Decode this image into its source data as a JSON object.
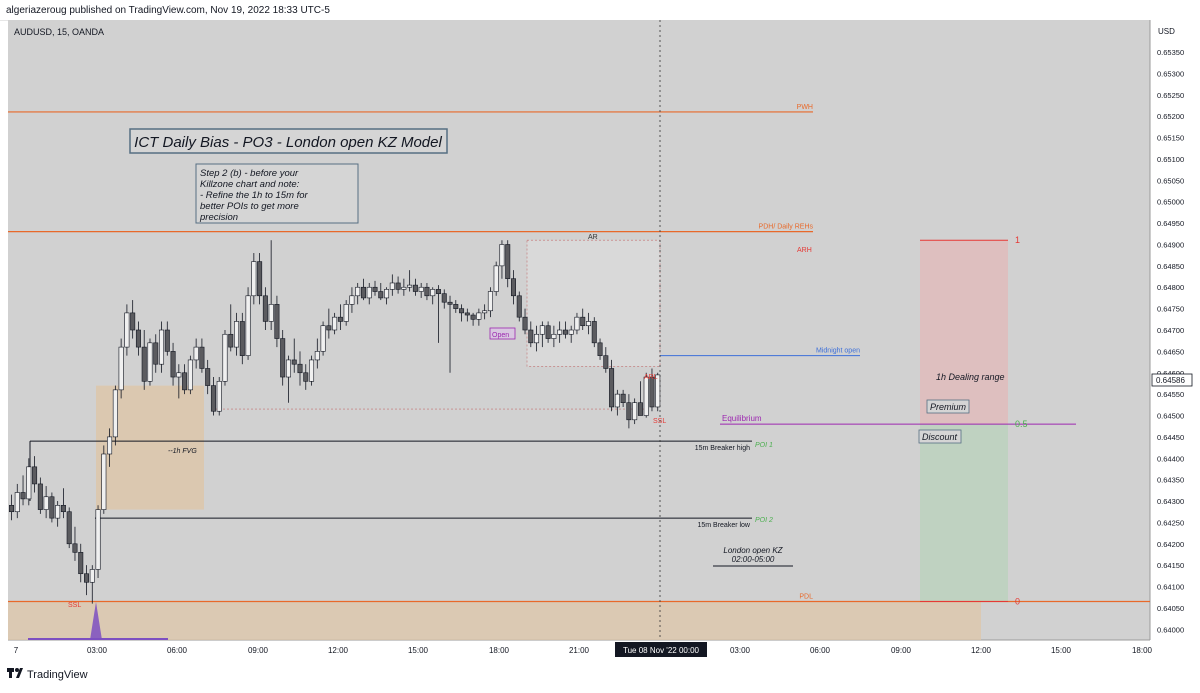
{
  "header": {
    "publisher": "algeriazeroug published on TradingView.com, Nov 19, 2022 18:33 UTC-5"
  },
  "footer": {
    "brand": "TradingView"
  },
  "symbol_label": "AUDUSD, 15, OANDA",
  "title_box": "ICT Daily Bias - PO3 - London open KZ Model",
  "note_lines": [
    "Step 2 (b) - before your",
    "Killzone chart and note:",
    "- Refine the 1h to 15m for",
    "better POIs to get more",
    "precision"
  ],
  "crosshair_time": "Tue 08 Nov '22   00:00",
  "current_price": "0.64586",
  "colors": {
    "bull": "#f0f0f0",
    "bear": "#5b5b5f",
    "orange": "#e8692a",
    "blue": "#3d6fd8",
    "purple": "#9c27b0",
    "green": "#4caf50",
    "red": "#e53935",
    "fvg": "#ddc6a8",
    "plot_bg": "#d1d1d1"
  },
  "chart_data": {
    "type": "candlestick",
    "symbol": "AUDUSD",
    "timeframe": "15",
    "broker": "OANDA",
    "y_axis": {
      "unit": "USD",
      "range": [
        0.63975,
        0.65425
      ],
      "ticks": [
        "0.64000",
        "0.64050",
        "0.64100",
        "0.64150",
        "0.64200",
        "0.64250",
        "0.64300",
        "0.64350",
        "0.64400",
        "0.64450",
        "0.64500",
        "0.64550",
        "0.64600",
        "0.64650",
        "0.64700",
        "0.64750",
        "0.64800",
        "0.64850",
        "0.64900",
        "0.64950",
        "0.65000",
        "0.65050",
        "0.65100",
        "0.65150",
        "0.65200",
        "0.65250",
        "0.65300",
        "0.65350"
      ]
    },
    "x_axis": {
      "ticks": [
        "7",
        "03:00",
        "06:00",
        "09:00",
        "12:00",
        "15:00",
        "18:00",
        "21:00",
        "00:00",
        "03:00",
        "06:00",
        "09:00",
        "12:00",
        "15:00",
        "18:00"
      ]
    },
    "candles": [
      {
        "o": 0.6429,
        "h": 0.64315,
        "l": 0.64255,
        "c": 0.64275
      },
      {
        "o": 0.64275,
        "h": 0.6434,
        "l": 0.6426,
        "c": 0.6432
      },
      {
        "o": 0.6432,
        "h": 0.6436,
        "l": 0.6429,
        "c": 0.64305
      },
      {
        "o": 0.64305,
        "h": 0.644,
        "l": 0.6429,
        "c": 0.6438
      },
      {
        "o": 0.6438,
        "h": 0.64405,
        "l": 0.6432,
        "c": 0.6434
      },
      {
        "o": 0.6434,
        "h": 0.64355,
        "l": 0.6427,
        "c": 0.6428
      },
      {
        "o": 0.6428,
        "h": 0.64335,
        "l": 0.6426,
        "c": 0.6431
      },
      {
        "o": 0.6431,
        "h": 0.6432,
        "l": 0.6425,
        "c": 0.6426
      },
      {
        "o": 0.6426,
        "h": 0.643,
        "l": 0.6424,
        "c": 0.6429
      },
      {
        "o": 0.6429,
        "h": 0.6433,
        "l": 0.6426,
        "c": 0.64275
      },
      {
        "o": 0.64275,
        "h": 0.64285,
        "l": 0.6419,
        "c": 0.642
      },
      {
        "o": 0.642,
        "h": 0.6424,
        "l": 0.6416,
        "c": 0.6418
      },
      {
        "o": 0.6418,
        "h": 0.642,
        "l": 0.6411,
        "c": 0.6413
      },
      {
        "o": 0.6413,
        "h": 0.6415,
        "l": 0.6408,
        "c": 0.6411
      },
      {
        "o": 0.6411,
        "h": 0.6415,
        "l": 0.6406,
        "c": 0.6414
      },
      {
        "o": 0.6414,
        "h": 0.6429,
        "l": 0.6412,
        "c": 0.6428
      },
      {
        "o": 0.6428,
        "h": 0.6443,
        "l": 0.6427,
        "c": 0.6441
      },
      {
        "o": 0.6441,
        "h": 0.6447,
        "l": 0.6438,
        "c": 0.6445
      },
      {
        "o": 0.6445,
        "h": 0.6457,
        "l": 0.6443,
        "c": 0.6456
      },
      {
        "o": 0.6456,
        "h": 0.6468,
        "l": 0.6454,
        "c": 0.6466
      },
      {
        "o": 0.6466,
        "h": 0.6476,
        "l": 0.6464,
        "c": 0.6474
      },
      {
        "o": 0.6474,
        "h": 0.6477,
        "l": 0.6468,
        "c": 0.647
      },
      {
        "o": 0.647,
        "h": 0.6472,
        "l": 0.6464,
        "c": 0.6466
      },
      {
        "o": 0.6466,
        "h": 0.647,
        "l": 0.6456,
        "c": 0.6458
      },
      {
        "o": 0.6458,
        "h": 0.6468,
        "l": 0.6457,
        "c": 0.6467
      },
      {
        "o": 0.6467,
        "h": 0.6469,
        "l": 0.646,
        "c": 0.6462
      },
      {
        "o": 0.6462,
        "h": 0.6472,
        "l": 0.646,
        "c": 0.647
      },
      {
        "o": 0.647,
        "h": 0.6472,
        "l": 0.6464,
        "c": 0.6465
      },
      {
        "o": 0.6465,
        "h": 0.6467,
        "l": 0.6457,
        "c": 0.6459
      },
      {
        "o": 0.6459,
        "h": 0.6462,
        "l": 0.6454,
        "c": 0.646
      },
      {
        "o": 0.646,
        "h": 0.6462,
        "l": 0.6455,
        "c": 0.6456
      },
      {
        "o": 0.6456,
        "h": 0.6464,
        "l": 0.6455,
        "c": 0.6463
      },
      {
        "o": 0.6463,
        "h": 0.6468,
        "l": 0.6461,
        "c": 0.6466
      },
      {
        "o": 0.6466,
        "h": 0.6468,
        "l": 0.646,
        "c": 0.6461
      },
      {
        "o": 0.6461,
        "h": 0.6463,
        "l": 0.6455,
        "c": 0.6457
      },
      {
        "o": 0.6457,
        "h": 0.6459,
        "l": 0.645,
        "c": 0.6451
      },
      {
        "o": 0.6451,
        "h": 0.6459,
        "l": 0.645,
        "c": 0.6458
      },
      {
        "o": 0.6458,
        "h": 0.647,
        "l": 0.6457,
        "c": 0.6469
      },
      {
        "o": 0.6469,
        "h": 0.6476,
        "l": 0.6465,
        "c": 0.6466
      },
      {
        "o": 0.6466,
        "h": 0.6474,
        "l": 0.6464,
        "c": 0.6472
      },
      {
        "o": 0.6472,
        "h": 0.6474,
        "l": 0.6462,
        "c": 0.6464
      },
      {
        "o": 0.6464,
        "h": 0.648,
        "l": 0.6463,
        "c": 0.6478
      },
      {
        "o": 0.6478,
        "h": 0.6488,
        "l": 0.6476,
        "c": 0.6486
      },
      {
        "o": 0.6486,
        "h": 0.6488,
        "l": 0.6476,
        "c": 0.6478
      },
      {
        "o": 0.6478,
        "h": 0.648,
        "l": 0.647,
        "c": 0.6472
      },
      {
        "o": 0.6472,
        "h": 0.6491,
        "l": 0.647,
        "c": 0.6476
      },
      {
        "o": 0.6476,
        "h": 0.6478,
        "l": 0.6466,
        "c": 0.6468
      },
      {
        "o": 0.6468,
        "h": 0.647,
        "l": 0.6457,
        "c": 0.6459
      },
      {
        "o": 0.6459,
        "h": 0.6464,
        "l": 0.6453,
        "c": 0.6463
      },
      {
        "o": 0.6463,
        "h": 0.6468,
        "l": 0.646,
        "c": 0.6462
      },
      {
        "o": 0.6462,
        "h": 0.6465,
        "l": 0.6457,
        "c": 0.646
      },
      {
        "o": 0.646,
        "h": 0.6462,
        "l": 0.6456,
        "c": 0.6458
      },
      {
        "o": 0.6458,
        "h": 0.6464,
        "l": 0.6457,
        "c": 0.6463
      },
      {
        "o": 0.6463,
        "h": 0.6468,
        "l": 0.6461,
        "c": 0.6465
      },
      {
        "o": 0.6465,
        "h": 0.6472,
        "l": 0.6464,
        "c": 0.6471
      },
      {
        "o": 0.6471,
        "h": 0.6475,
        "l": 0.6468,
        "c": 0.647
      },
      {
        "o": 0.647,
        "h": 0.6474,
        "l": 0.6469,
        "c": 0.6473
      },
      {
        "o": 0.6473,
        "h": 0.6476,
        "l": 0.647,
        "c": 0.6472
      },
      {
        "o": 0.6472,
        "h": 0.6477,
        "l": 0.6471,
        "c": 0.6476
      },
      {
        "o": 0.6476,
        "h": 0.648,
        "l": 0.6474,
        "c": 0.6478
      },
      {
        "o": 0.6478,
        "h": 0.6481,
        "l": 0.6476,
        "c": 0.648
      },
      {
        "o": 0.648,
        "h": 0.6482,
        "l": 0.6477,
        "c": 0.64775
      },
      {
        "o": 0.64775,
        "h": 0.6481,
        "l": 0.6476,
        "c": 0.648
      },
      {
        "o": 0.648,
        "h": 0.64815,
        "l": 0.6478,
        "c": 0.6479
      },
      {
        "o": 0.6479,
        "h": 0.6481,
        "l": 0.6477,
        "c": 0.64775
      },
      {
        "o": 0.64775,
        "h": 0.648,
        "l": 0.6476,
        "c": 0.64795
      },
      {
        "o": 0.64795,
        "h": 0.6483,
        "l": 0.6478,
        "c": 0.6481
      },
      {
        "o": 0.6481,
        "h": 0.64825,
        "l": 0.64785,
        "c": 0.64795
      },
      {
        "o": 0.64795,
        "h": 0.6482,
        "l": 0.6478,
        "c": 0.648
      },
      {
        "o": 0.648,
        "h": 0.6484,
        "l": 0.6479,
        "c": 0.64805
      },
      {
        "o": 0.64805,
        "h": 0.6482,
        "l": 0.6478,
        "c": 0.6479
      },
      {
        "o": 0.6479,
        "h": 0.6481,
        "l": 0.64775,
        "c": 0.648
      },
      {
        "o": 0.648,
        "h": 0.6481,
        "l": 0.6477,
        "c": 0.6478
      },
      {
        "o": 0.6478,
        "h": 0.648,
        "l": 0.6476,
        "c": 0.64795
      },
      {
        "o": 0.64795,
        "h": 0.64805,
        "l": 0.6467,
        "c": 0.64785
      },
      {
        "o": 0.64785,
        "h": 0.64795,
        "l": 0.6475,
        "c": 0.64765
      },
      {
        "o": 0.64765,
        "h": 0.6478,
        "l": 0.646,
        "c": 0.6476
      },
      {
        "o": 0.6476,
        "h": 0.6477,
        "l": 0.6474,
        "c": 0.6475
      },
      {
        "o": 0.6475,
        "h": 0.6476,
        "l": 0.6472,
        "c": 0.6474
      },
      {
        "o": 0.6474,
        "h": 0.6475,
        "l": 0.6472,
        "c": 0.64735
      },
      {
        "o": 0.64735,
        "h": 0.6474,
        "l": 0.6471,
        "c": 0.64725
      },
      {
        "o": 0.64725,
        "h": 0.6475,
        "l": 0.6471,
        "c": 0.6474
      },
      {
        "o": 0.6474,
        "h": 0.6476,
        "l": 0.64725,
        "c": 0.64745
      },
      {
        "o": 0.64745,
        "h": 0.648,
        "l": 0.6473,
        "c": 0.6479
      },
      {
        "o": 0.6479,
        "h": 0.6486,
        "l": 0.6478,
        "c": 0.6485
      },
      {
        "o": 0.6485,
        "h": 0.6491,
        "l": 0.6482,
        "c": 0.649
      },
      {
        "o": 0.649,
        "h": 0.6491,
        "l": 0.648,
        "c": 0.6482
      },
      {
        "o": 0.6482,
        "h": 0.6484,
        "l": 0.6476,
        "c": 0.6478
      },
      {
        "o": 0.6478,
        "h": 0.6479,
        "l": 0.6472,
        "c": 0.6473
      },
      {
        "o": 0.6473,
        "h": 0.6475,
        "l": 0.6469,
        "c": 0.647
      },
      {
        "o": 0.647,
        "h": 0.6472,
        "l": 0.6466,
        "c": 0.6467
      },
      {
        "o": 0.6467,
        "h": 0.6471,
        "l": 0.6465,
        "c": 0.6469
      },
      {
        "o": 0.6469,
        "h": 0.6472,
        "l": 0.6466,
        "c": 0.6471
      },
      {
        "o": 0.6471,
        "h": 0.6472,
        "l": 0.6467,
        "c": 0.6468
      },
      {
        "o": 0.6468,
        "h": 0.6471,
        "l": 0.6466,
        "c": 0.6469
      },
      {
        "o": 0.6469,
        "h": 0.6472,
        "l": 0.6467,
        "c": 0.647
      },
      {
        "o": 0.647,
        "h": 0.6472,
        "l": 0.6468,
        "c": 0.6469
      },
      {
        "o": 0.6469,
        "h": 0.6471,
        "l": 0.6467,
        "c": 0.647
      },
      {
        "o": 0.647,
        "h": 0.6474,
        "l": 0.6469,
        "c": 0.6473
      },
      {
        "o": 0.6473,
        "h": 0.6475,
        "l": 0.647,
        "c": 0.6471
      },
      {
        "o": 0.6471,
        "h": 0.6474,
        "l": 0.6469,
        "c": 0.6472
      },
      {
        "o": 0.6472,
        "h": 0.6473,
        "l": 0.6466,
        "c": 0.6467
      },
      {
        "o": 0.6467,
        "h": 0.6468,
        "l": 0.6463,
        "c": 0.6464
      },
      {
        "o": 0.6464,
        "h": 0.6466,
        "l": 0.646,
        "c": 0.6461
      },
      {
        "o": 0.6461,
        "h": 0.6463,
        "l": 0.6451,
        "c": 0.6452
      },
      {
        "o": 0.6452,
        "h": 0.6456,
        "l": 0.645,
        "c": 0.6455
      },
      {
        "o": 0.6455,
        "h": 0.6456,
        "l": 0.6452,
        "c": 0.6453
      },
      {
        "o": 0.6453,
        "h": 0.6455,
        "l": 0.6447,
        "c": 0.6449
      },
      {
        "o": 0.6449,
        "h": 0.6454,
        "l": 0.6448,
        "c": 0.6453
      },
      {
        "o": 0.6453,
        "h": 0.6458,
        "l": 0.6451,
        "c": 0.645
      },
      {
        "o": 0.645,
        "h": 0.646,
        "l": 0.64495,
        "c": 0.6459
      },
      {
        "o": 0.6459,
        "h": 0.6461,
        "l": 0.6451,
        "c": 0.6452
      },
      {
        "o": 0.6452,
        "h": 0.646,
        "l": 0.6451,
        "c": 0.64595
      }
    ],
    "levels": [
      {
        "price": 0.6521,
        "label": "PWH",
        "color": "orange"
      },
      {
        "price": 0.6493,
        "label": "PDH/ Daily REHs",
        "color": "orange"
      },
      {
        "price": 0.64065,
        "label": "PDL",
        "color": "orange"
      },
      {
        "price": 0.6464,
        "label": "Midnight open",
        "color": "blue"
      },
      {
        "price": 0.6448,
        "label": "Equilibrium",
        "color": "purple"
      },
      {
        "price": 0.6444,
        "label": "15m Breaker high",
        "color": "black"
      },
      {
        "price": 0.6426,
        "label": "15m Breaker low",
        "color": "black"
      }
    ],
    "annotations": [
      "AR",
      "ARH",
      "ARL",
      "SSL",
      "SSL",
      "Open",
      "--1h FVG",
      "POI 1",
      "POI 2",
      "1h Dealing range",
      "Premium",
      "Discount",
      "London open KZ",
      "02:00-05:00"
    ],
    "fib_levels": [
      {
        "price": 0.6491,
        "label": "1"
      },
      {
        "price": 0.6448,
        "label": "0.5"
      },
      {
        "price": 0.64065,
        "label": "0"
      }
    ]
  }
}
